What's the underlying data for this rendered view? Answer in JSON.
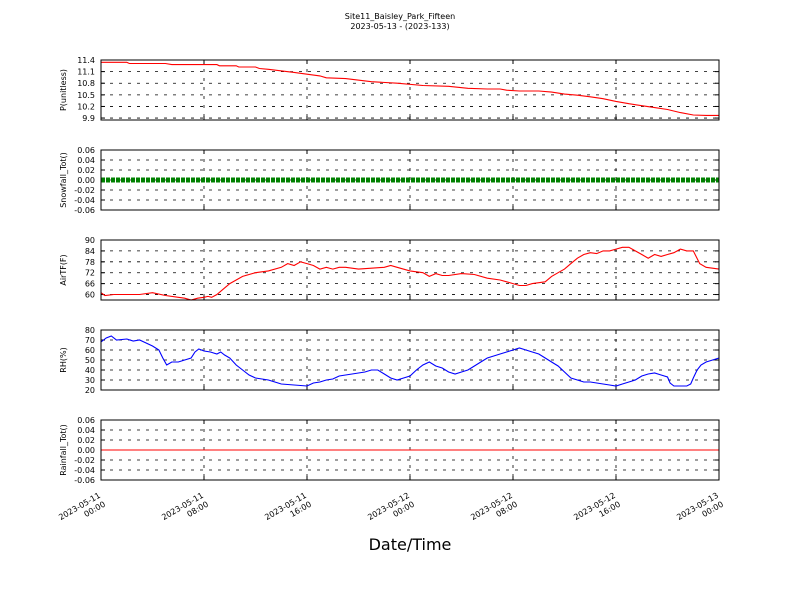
{
  "header": {
    "title": "Site11_Baisley_Park_Fifteen",
    "subtitle": "2023-05-13 - (2023-133)"
  },
  "chart_data": {
    "type": "line",
    "xlabel": "Date/Time",
    "x_range": [
      "2023-05-11 00:00",
      "2023-05-13 00:00"
    ],
    "x_ticks": [
      {
        "t": 0,
        "line1": "2023-05-11",
        "line2": "00:00"
      },
      {
        "t": 8,
        "line1": "2023-05-11",
        "line2": "08:00"
      },
      {
        "t": 16,
        "line1": "2023-05-11",
        "line2": "16:00"
      },
      {
        "t": 24,
        "line1": "2023-05-12",
        "line2": "00:00"
      },
      {
        "t": 32,
        "line1": "2023-05-12",
        "line2": "08:00"
      },
      {
        "t": 40,
        "line1": "2023-05-12",
        "line2": "16:00"
      },
      {
        "t": 48,
        "line1": "2023-05-13",
        "line2": "00:00"
      }
    ],
    "grid": true,
    "panels": [
      {
        "ylabel": "P(unitless)",
        "ylim": [
          9.85,
          11.4
        ],
        "yticks": [
          "11.4",
          "11.1",
          "10.8",
          "10.5",
          "10.2",
          "9.9"
        ],
        "ytick_values": [
          11.4,
          11.1,
          10.8,
          10.5,
          10.2,
          9.9
        ],
        "color": "#ff0000",
        "style": "line",
        "points": [
          [
            0,
            11.34
          ],
          [
            2,
            11.34
          ],
          [
            2.2,
            11.31
          ],
          [
            5,
            11.31
          ],
          [
            5.5,
            11.28
          ],
          [
            9,
            11.28
          ],
          [
            9.2,
            11.25
          ],
          [
            10.5,
            11.25
          ],
          [
            10.7,
            11.22
          ],
          [
            12,
            11.22
          ],
          [
            12.3,
            11.18
          ],
          [
            13,
            11.16
          ],
          [
            15,
            11.08
          ],
          [
            17,
            10.99
          ],
          [
            17.5,
            10.94
          ],
          [
            19,
            10.92
          ],
          [
            21,
            10.84
          ],
          [
            23,
            10.8
          ],
          [
            25,
            10.74
          ],
          [
            27,
            10.72
          ],
          [
            28.5,
            10.67
          ],
          [
            30,
            10.65
          ],
          [
            31,
            10.65
          ],
          [
            31.5,
            10.62
          ],
          [
            32.5,
            10.6
          ],
          [
            34,
            10.6
          ],
          [
            35,
            10.57
          ],
          [
            36,
            10.52
          ],
          [
            37,
            10.49
          ],
          [
            38,
            10.45
          ],
          [
            39,
            10.4
          ],
          [
            40,
            10.33
          ],
          [
            41,
            10.27
          ],
          [
            42,
            10.22
          ],
          [
            43,
            10.17
          ],
          [
            44,
            10.12
          ],
          [
            45,
            10.04
          ],
          [
            46,
            9.98
          ],
          [
            47,
            9.97
          ],
          [
            48,
            9.97
          ]
        ]
      },
      {
        "ylabel": "Snowfall_Tot()",
        "ylim": [
          -0.06,
          0.06
        ],
        "yticks": [
          "0.06",
          "0.04",
          "0.02",
          "0.00",
          "-0.02",
          "-0.04",
          "-0.06"
        ],
        "ytick_values": [
          0.06,
          0.04,
          0.02,
          0.0,
          -0.02,
          -0.04,
          -0.06
        ],
        "color": "#008000",
        "style": "dots",
        "points": [
          [
            0,
            0
          ],
          [
            48,
            0
          ]
        ]
      },
      {
        "ylabel": "AirTF(F)",
        "ylim": [
          57,
          90
        ],
        "yticks": [
          "90",
          "84",
          "78",
          "72",
          "66",
          "60"
        ],
        "ytick_values": [
          90,
          84,
          78,
          72,
          66,
          60
        ],
        "color": "#ff0000",
        "style": "line",
        "points": [
          [
            0,
            61
          ],
          [
            0.3,
            59.5
          ],
          [
            1,
            60
          ],
          [
            2,
            60
          ],
          [
            3,
            60
          ],
          [
            4,
            61
          ],
          [
            5,
            59.5
          ],
          [
            6,
            58.5
          ],
          [
            6.5,
            58
          ],
          [
            7,
            57
          ],
          [
            7.5,
            58
          ],
          [
            8,
            58.5
          ],
          [
            8.3,
            59
          ],
          [
            8.6,
            58.5
          ],
          [
            9,
            60
          ],
          [
            9.5,
            63
          ],
          [
            10,
            66
          ],
          [
            10.5,
            68
          ],
          [
            11,
            70
          ],
          [
            12,
            72
          ],
          [
            13,
            73
          ],
          [
            14,
            75
          ],
          [
            14.5,
            77
          ],
          [
            15,
            76
          ],
          [
            15.5,
            78
          ],
          [
            16,
            77
          ],
          [
            16.5,
            76
          ],
          [
            17,
            74
          ],
          [
            17.5,
            75
          ],
          [
            18,
            74
          ],
          [
            18.5,
            75
          ],
          [
            19,
            75
          ],
          [
            20,
            74
          ],
          [
            21,
            74.5
          ],
          [
            22,
            75
          ],
          [
            22.5,
            76
          ],
          [
            23,
            75
          ],
          [
            24,
            73
          ],
          [
            25,
            72
          ],
          [
            25.5,
            70
          ],
          [
            26,
            71.5
          ],
          [
            26.5,
            70.5
          ],
          [
            27,
            70.5
          ],
          [
            28,
            71.5
          ],
          [
            29,
            71
          ],
          [
            30,
            69
          ],
          [
            31,
            68
          ],
          [
            31.5,
            67
          ],
          [
            32,
            66
          ],
          [
            32.5,
            65
          ],
          [
            33,
            65
          ],
          [
            33.5,
            66
          ],
          [
            34,
            66.5
          ],
          [
            34.5,
            67
          ],
          [
            35,
            70
          ],
          [
            35.5,
            72
          ],
          [
            36,
            74
          ],
          [
            36.5,
            77
          ],
          [
            37,
            80
          ],
          [
            37.5,
            82
          ],
          [
            38,
            83
          ],
          [
            38.5,
            82.5
          ],
          [
            39,
            84
          ],
          [
            39.5,
            84
          ],
          [
            40,
            85
          ],
          [
            40.5,
            86
          ],
          [
            41,
            86
          ],
          [
            41.5,
            84
          ],
          [
            42,
            82
          ],
          [
            42.5,
            80
          ],
          [
            43,
            82
          ],
          [
            43.5,
            81
          ],
          [
            44,
            82
          ],
          [
            44.5,
            83
          ],
          [
            45,
            85
          ],
          [
            45.5,
            84
          ],
          [
            46,
            84
          ],
          [
            46.5,
            77
          ],
          [
            47,
            75
          ],
          [
            48,
            74
          ]
        ]
      },
      {
        "ylabel": "RH(%)",
        "ylim": [
          20,
          80
        ],
        "yticks": [
          "80",
          "70",
          "60",
          "50",
          "40",
          "30",
          "20"
        ],
        "ytick_values": [
          80,
          70,
          60,
          50,
          40,
          30,
          20
        ],
        "color": "#0000ff",
        "style": "line",
        "points": [
          [
            0,
            68
          ],
          [
            0.4,
            72
          ],
          [
            0.8,
            74
          ],
          [
            1.2,
            70
          ],
          [
            2,
            71
          ],
          [
            2.5,
            69
          ],
          [
            3,
            70
          ],
          [
            3.5,
            67
          ],
          [
            4,
            64
          ],
          [
            4.5,
            60
          ],
          [
            4.8,
            52
          ],
          [
            5.1,
            45
          ],
          [
            5.5,
            48
          ],
          [
            6,
            48
          ],
          [
            6.5,
            50
          ],
          [
            7,
            52
          ],
          [
            7.3,
            58
          ],
          [
            7.6,
            61
          ],
          [
            8,
            59
          ],
          [
            8.5,
            58
          ],
          [
            9,
            56
          ],
          [
            9.3,
            58
          ],
          [
            9.6,
            55
          ],
          [
            10,
            52
          ],
          [
            10.5,
            45
          ],
          [
            11,
            40
          ],
          [
            11.5,
            35
          ],
          [
            12,
            32
          ],
          [
            13,
            30
          ],
          [
            14,
            26
          ],
          [
            15,
            25
          ],
          [
            16,
            24
          ],
          [
            16.5,
            27
          ],
          [
            17,
            28
          ],
          [
            17.5,
            30
          ],
          [
            18,
            31
          ],
          [
            18.5,
            34
          ],
          [
            19,
            35
          ],
          [
            19.5,
            36
          ],
          [
            20,
            37
          ],
          [
            20.5,
            38
          ],
          [
            21,
            40
          ],
          [
            21.5,
            40
          ],
          [
            22,
            36
          ],
          [
            22.5,
            32
          ],
          [
            23,
            30
          ],
          [
            23.5,
            32
          ],
          [
            24,
            34
          ],
          [
            24.5,
            40
          ],
          [
            25,
            45
          ],
          [
            25.5,
            48
          ],
          [
            26,
            44
          ],
          [
            26.5,
            42
          ],
          [
            27,
            38
          ],
          [
            27.5,
            36
          ],
          [
            28,
            38
          ],
          [
            28.5,
            40
          ],
          [
            29,
            44
          ],
          [
            29.5,
            48
          ],
          [
            30,
            52
          ],
          [
            30.5,
            54
          ],
          [
            31,
            56
          ],
          [
            31.5,
            58
          ],
          [
            32,
            60
          ],
          [
            32.5,
            62
          ],
          [
            33,
            60
          ],
          [
            33.5,
            58
          ],
          [
            34,
            56
          ],
          [
            34.5,
            52
          ],
          [
            35,
            48
          ],
          [
            35.5,
            44
          ],
          [
            36,
            38
          ],
          [
            36.5,
            32
          ],
          [
            37,
            30
          ],
          [
            37.5,
            28
          ],
          [
            38,
            28
          ],
          [
            38.5,
            27
          ],
          [
            39,
            26
          ],
          [
            39.5,
            25
          ],
          [
            40,
            24
          ],
          [
            40.5,
            26
          ],
          [
            41,
            28
          ],
          [
            41.5,
            30
          ],
          [
            42,
            34
          ],
          [
            42.5,
            36
          ],
          [
            43,
            37
          ],
          [
            43.5,
            35
          ],
          [
            44,
            33
          ],
          [
            44.2,
            27
          ],
          [
            44.5,
            24
          ],
          [
            45,
            24
          ],
          [
            45.5,
            24
          ],
          [
            45.8,
            26
          ],
          [
            46,
            32
          ],
          [
            46.3,
            40
          ],
          [
            46.6,
            45
          ],
          [
            47,
            48
          ],
          [
            47.5,
            50
          ],
          [
            48,
            52
          ]
        ]
      },
      {
        "ylabel": "Rainfall_Tot()",
        "ylim": [
          -0.06,
          0.06
        ],
        "yticks": [
          "0.06",
          "0.04",
          "0.02",
          "0.00",
          "-0.02",
          "-0.04",
          "-0.06"
        ],
        "ytick_values": [
          0.06,
          0.04,
          0.02,
          0.0,
          -0.02,
          -0.04,
          -0.06
        ],
        "color": "#ff0000",
        "style": "line",
        "points": [
          [
            0,
            0
          ],
          [
            48,
            0
          ]
        ]
      }
    ]
  }
}
